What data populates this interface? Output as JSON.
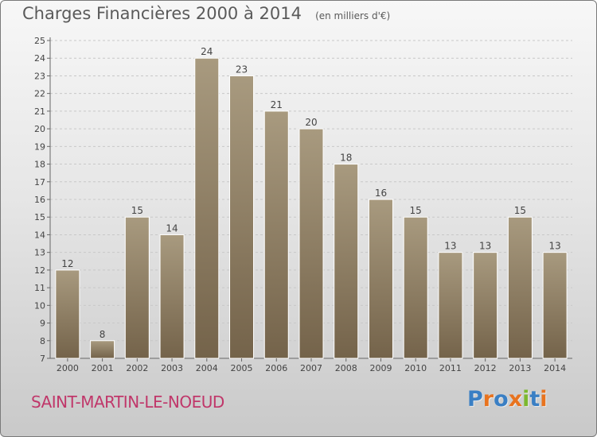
{
  "chart_data": {
    "type": "bar",
    "title": "Charges Financières 2000 à 2014",
    "subtitle": "(en milliers d'€)",
    "categories": [
      "2000",
      "2001",
      "2002",
      "2003",
      "2004",
      "2005",
      "2006",
      "2007",
      "2008",
      "2009",
      "2010",
      "2011",
      "2012",
      "2013",
      "2014"
    ],
    "values": [
      12,
      8,
      15,
      14,
      24,
      23,
      21,
      20,
      18,
      16,
      15,
      13,
      13,
      15,
      13
    ],
    "ylim": [
      7,
      25
    ],
    "yticks": [
      7,
      8,
      9,
      10,
      11,
      12,
      13,
      14,
      15,
      16,
      17,
      18,
      19,
      20,
      21,
      22,
      23,
      24,
      25
    ],
    "grid": true,
    "bar_color_top": "#a89a7f",
    "bar_color_bottom": "#74634a"
  },
  "commune": "SAINT-MARTIN-LE-NOEUD",
  "logo": {
    "text": "Proxiti",
    "letter_colors": [
      "#3a7fc4",
      "#e8731f",
      "#3a7fc4",
      "#e8731f",
      "#7cb82f",
      "#3a7fc4",
      "#e8731f"
    ]
  }
}
